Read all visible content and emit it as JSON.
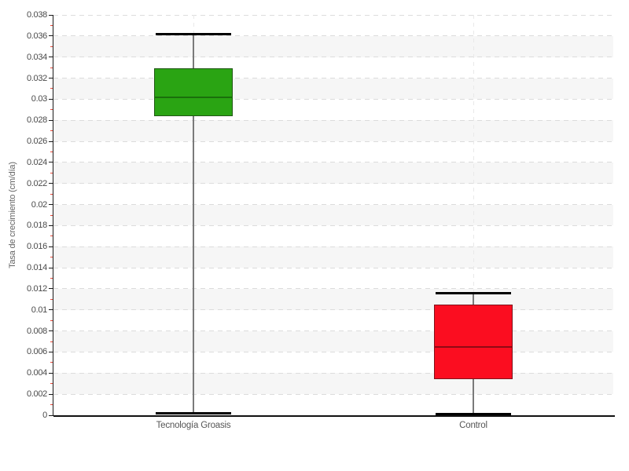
{
  "chart_data": {
    "type": "boxplot",
    "title": "",
    "xlabel": "",
    "ylabel": "Tasa de crecimiento (cm/día)",
    "ylim": [
      0,
      0.038
    ],
    "ytick_step": 0.002,
    "minor_tick_step": 0.001,
    "grid": "dashed horizontal at each major tick, dashed vertical at each category center, alternating light-gray bands",
    "legend": "none",
    "ytick_labels": [
      "0",
      "0.002",
      "0.004",
      "0.006",
      "0.008",
      "0.01",
      "0.012",
      "0.014",
      "0.016",
      "0.018",
      "0.02",
      "0.022",
      "0.024",
      "0.026",
      "0.028",
      "0.03",
      "0.032",
      "0.034",
      "0.036",
      "0.038"
    ],
    "categories": [
      "Tecnología Groasis",
      "Control"
    ],
    "series": [
      {
        "name": "Tecnología Groasis",
        "min": 0.0002,
        "q1": 0.0284,
        "median": 0.0302,
        "q3": 0.0329,
        "max": 0.0362,
        "fill_color": "#2aa413",
        "median_color": "#1a6f0c"
      },
      {
        "name": "Control",
        "min": 0.0001,
        "q1": 0.0034,
        "median": 0.0065,
        "q3": 0.0105,
        "max": 0.0116,
        "fill_color": "#fb0d20",
        "median_color": "#8f0a14"
      }
    ],
    "colors": {
      "band": "#f6f6f6",
      "horizontal_grid": "#dcdcdc",
      "vertical_grid": "#e9e9e9",
      "minor_tick": "#e8493a",
      "axis": "#1a1a1a",
      "whisker": "#7a7a7a",
      "whisker_cap": "#000000",
      "tick_text": "#4a4a4a",
      "category_text": "#555555",
      "axis_title_text": "#666666"
    }
  }
}
